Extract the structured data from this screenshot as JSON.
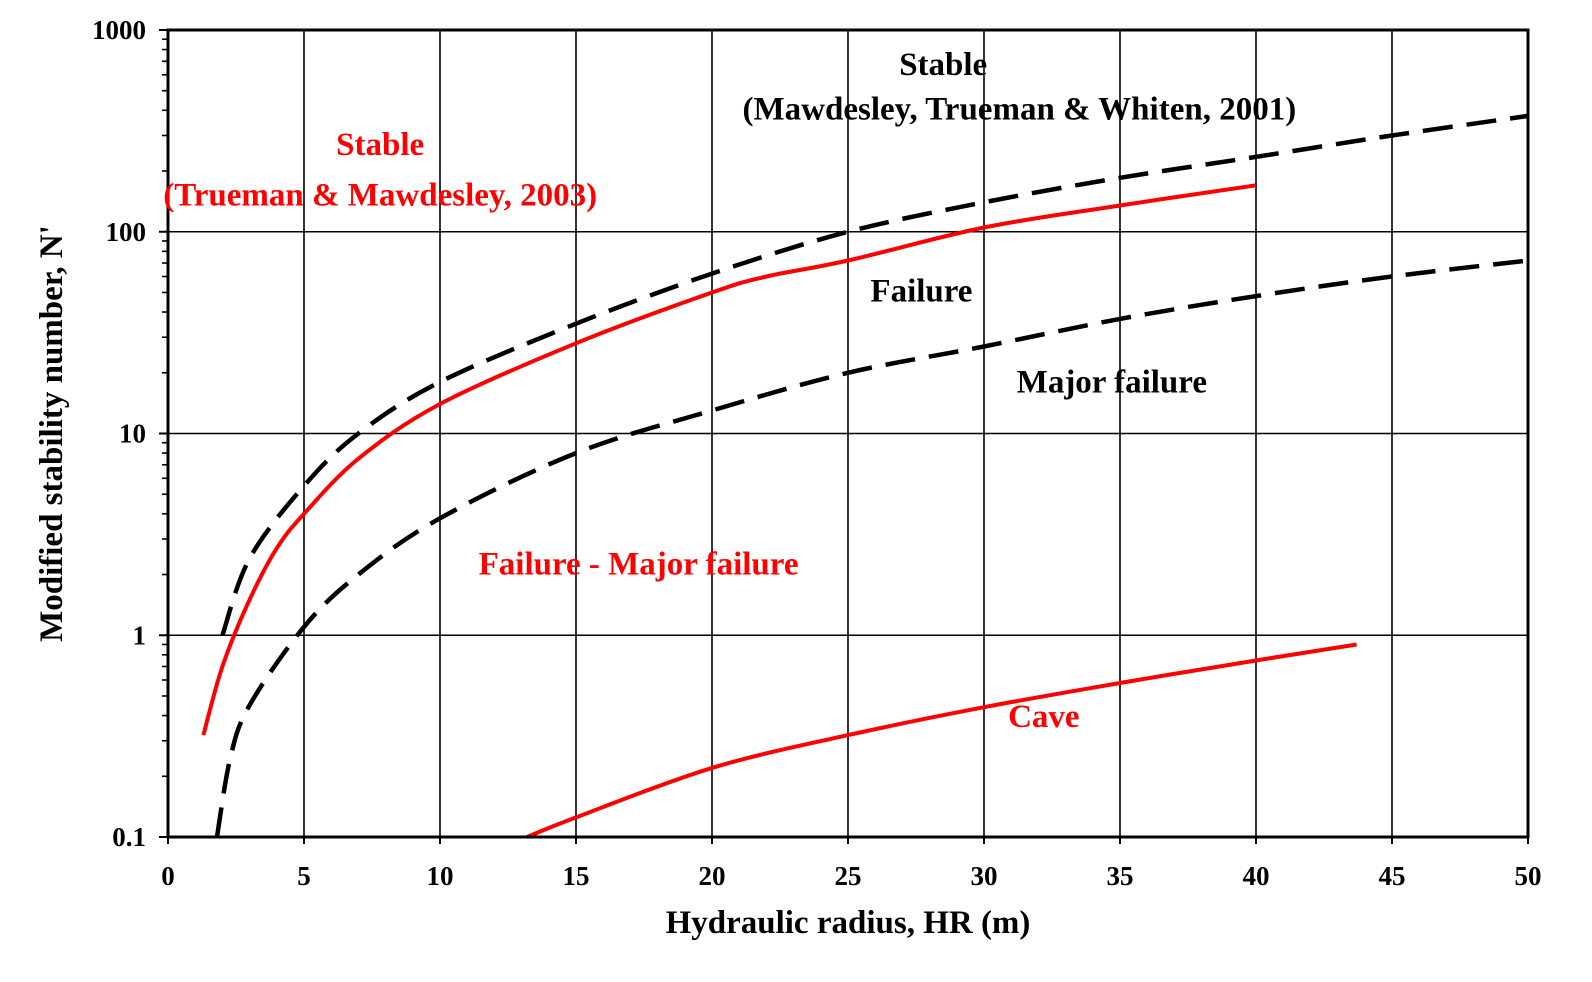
{
  "chart_data": {
    "type": "line",
    "title": "",
    "xlabel": "Hydraulic radius, HR (m)",
    "ylabel": "Modified stability number, N'",
    "xlim": [
      0,
      50
    ],
    "ylim": [
      0.1,
      1000
    ],
    "yscale": "log",
    "grid": true,
    "x_ticks": [
      "0",
      "5",
      "10",
      "15",
      "20",
      "25",
      "30",
      "35",
      "40",
      "45",
      "50"
    ],
    "y_ticks": [
      "0.1",
      "1",
      "10",
      "100",
      "1000"
    ],
    "colors": {
      "red": "#ff0000",
      "black": "#000000",
      "grid": "#000000"
    },
    "series": [
      {
        "style": "dashed",
        "color": "#000000",
        "x": [
          2,
          3,
          5,
          7,
          10,
          15,
          20,
          25,
          30,
          35,
          40,
          45,
          50
        ],
        "y": [
          1.0,
          2.4,
          5.5,
          10,
          18,
          35,
          62,
          100,
          140,
          185,
          235,
          300,
          375
        ]
      },
      {
        "style": "dashed",
        "color": "#000000",
        "x": [
          1.8,
          2.3,
          3,
          5,
          7,
          10,
          15,
          20,
          25,
          30,
          35,
          40,
          45,
          50
        ],
        "y": [
          0.1,
          0.25,
          0.45,
          1.1,
          2,
          3.8,
          8,
          13,
          20,
          27,
          37,
          48,
          60,
          72
        ]
      },
      {
        "style": "solid",
        "color": "#ff0000",
        "x": [
          1.3,
          2,
          3,
          4,
          5,
          7,
          10,
          15,
          20,
          22,
          25,
          30,
          35,
          40
        ],
        "y": [
          0.32,
          0.7,
          1.5,
          2.7,
          4,
          7.5,
          14,
          28,
          50,
          60,
          72,
          105,
          135,
          170
        ]
      },
      {
        "style": "solid",
        "color": "#ff0000",
        "x": [
          13.2,
          15,
          20,
          25,
          30,
          35,
          40,
          43.7
        ],
        "y": [
          0.1,
          0.125,
          0.22,
          0.32,
          0.44,
          0.58,
          0.75,
          0.9
        ]
      }
    ],
    "annotations": [
      {
        "text": "Stable",
        "color": "#000000",
        "x": 28.5,
        "y": 600
      },
      {
        "text": "(Mawdesley, Trueman & Whiten, 2001)",
        "color": "#000000",
        "x": 31.3,
        "y": 360
      },
      {
        "text": "Stable",
        "color": "#ff0000",
        "x": 7.8,
        "y": 240
      },
      {
        "text": "(Trueman & Mawdesley, 2003)",
        "color": "#ff0000",
        "x": 7.8,
        "y": 135
      },
      {
        "text": "Failure",
        "color": "#000000",
        "x": 27.7,
        "y": 45
      },
      {
        "text": "Major failure",
        "color": "#000000",
        "x": 34.7,
        "y": 16
      },
      {
        "text": "Failure - Major failure",
        "color": "#ff0000",
        "x": 17.3,
        "y": 2.0
      },
      {
        "text": "Cave",
        "color": "#ff0000",
        "x": 32.2,
        "y": 0.35
      }
    ]
  }
}
